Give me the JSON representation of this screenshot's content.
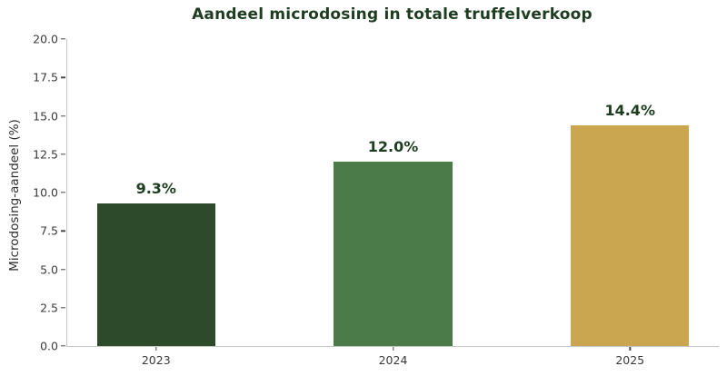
{
  "chart_data": {
    "type": "bar",
    "title": "Aandeel microdosing in totale truffelverkoop",
    "xlabel": "",
    "ylabel": "Microdosing-aandeel (%)",
    "categories": [
      "2023",
      "2024",
      "2025"
    ],
    "values": [
      9.3,
      12.0,
      14.4
    ],
    "value_labels": [
      "9.3%",
      "12.0%",
      "14.4%"
    ],
    "bar_colors": [
      "#2d4a2a",
      "#4b7b48",
      "#c9a64f"
    ],
    "ylim": [
      0,
      20
    ],
    "yticks": [
      0.0,
      2.5,
      5.0,
      7.5,
      10.0,
      12.5,
      15.0,
      17.5,
      20.0
    ],
    "ytick_labels": [
      "0.0",
      "2.5",
      "5.0",
      "7.5",
      "10.0",
      "12.5",
      "15.0",
      "17.5",
      "20.0"
    ],
    "grid": false,
    "legend_position": "none",
    "colors": {
      "title": "#1e3d20",
      "value_label": "#1e3d20",
      "tick_label": "#3a3a3a",
      "axis_label": "#2e2e2e",
      "spine": "#c6c6c6",
      "tick_mark": "#4a4a4a",
      "background": "#ffffff"
    }
  }
}
